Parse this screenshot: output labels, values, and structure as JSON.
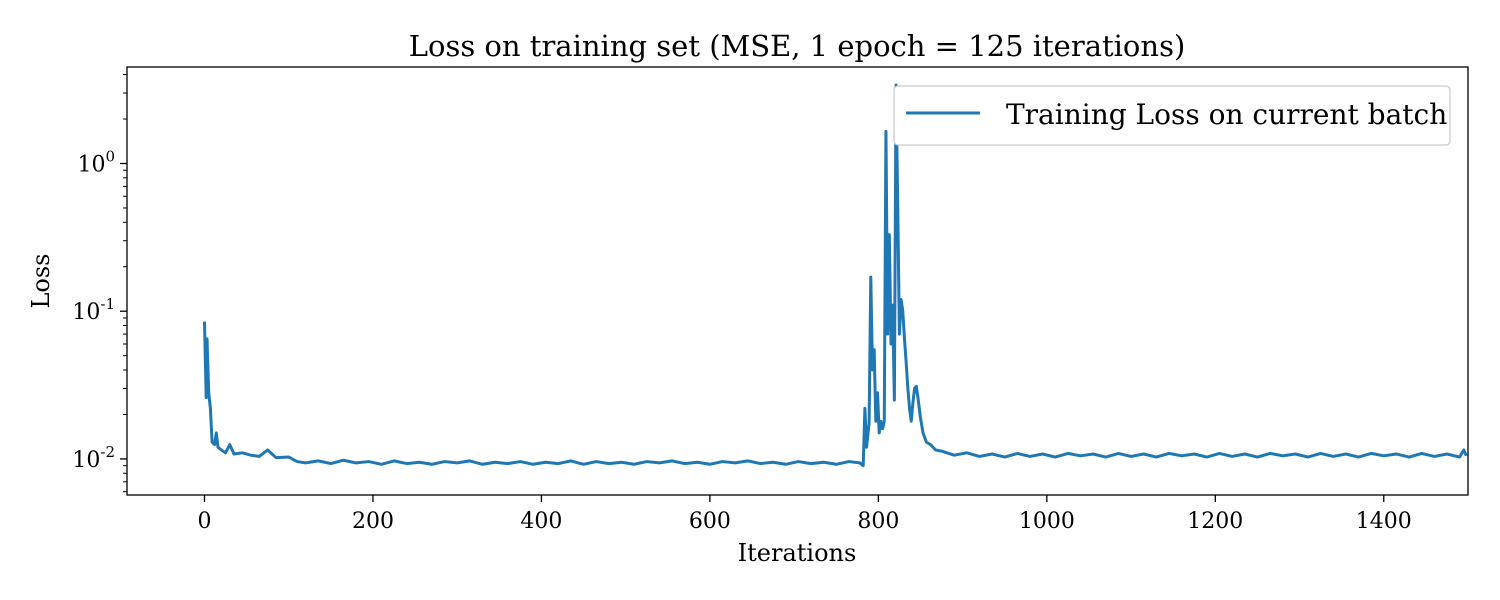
{
  "chart_data": {
    "type": "line",
    "title": "Loss on training set   (MSE, 1 epoch = 125 iterations)",
    "xlabel": "Iterations",
    "ylabel": "Loss",
    "xlim": [
      -92,
      1500
    ],
    "ylim": [
      0.0057,
      4.5
    ],
    "yscale": "log",
    "xticks": [
      0,
      200,
      400,
      600,
      800,
      1000,
      1200,
      1400
    ],
    "xtick_labels": [
      "0",
      "200",
      "400",
      "600",
      "800",
      "1000",
      "1200",
      "1400"
    ],
    "yticks": [
      {
        "value": 1,
        "base": "10",
        "exp": "0"
      },
      {
        "value": 0.1,
        "base": "10",
        "exp": "-1"
      },
      {
        "value": 0.01,
        "base": "10",
        "exp": "-2"
      }
    ],
    "grid": false,
    "legend": {
      "position": "top-right",
      "entries": [
        "Training Loss on current batch"
      ]
    },
    "series": [
      {
        "name": "Training Loss on current batch",
        "color": "#1f77b4",
        "points": [
          [
            0,
            0.085
          ],
          [
            2,
            0.026
          ],
          [
            3,
            0.065
          ],
          [
            5,
            0.028
          ],
          [
            7,
            0.022
          ],
          [
            9,
            0.013
          ],
          [
            12,
            0.0125
          ],
          [
            14,
            0.015
          ],
          [
            16,
            0.012
          ],
          [
            20,
            0.0115
          ],
          [
            25,
            0.011
          ],
          [
            30,
            0.0125
          ],
          [
            35,
            0.0108
          ],
          [
            45,
            0.011
          ],
          [
            55,
            0.0106
          ],
          [
            65,
            0.0104
          ],
          [
            75,
            0.0115
          ],
          [
            85,
            0.0102
          ],
          [
            100,
            0.0103
          ],
          [
            110,
            0.0096
          ],
          [
            120,
            0.0094
          ],
          [
            135,
            0.0097
          ],
          [
            150,
            0.0093
          ],
          [
            165,
            0.0098
          ],
          [
            180,
            0.0094
          ],
          [
            195,
            0.0096
          ],
          [
            210,
            0.0092
          ],
          [
            225,
            0.0097
          ],
          [
            240,
            0.0093
          ],
          [
            255,
            0.0095
          ],
          [
            270,
            0.0092
          ],
          [
            285,
            0.0096
          ],
          [
            300,
            0.0094
          ],
          [
            315,
            0.0097
          ],
          [
            330,
            0.0092
          ],
          [
            345,
            0.0095
          ],
          [
            360,
            0.0093
          ],
          [
            375,
            0.0096
          ],
          [
            390,
            0.0092
          ],
          [
            405,
            0.0095
          ],
          [
            420,
            0.0093
          ],
          [
            435,
            0.0097
          ],
          [
            450,
            0.0092
          ],
          [
            465,
            0.0096
          ],
          [
            480,
            0.0093
          ],
          [
            495,
            0.0095
          ],
          [
            510,
            0.0092
          ],
          [
            525,
            0.0096
          ],
          [
            540,
            0.0094
          ],
          [
            555,
            0.0097
          ],
          [
            570,
            0.0093
          ],
          [
            585,
            0.0095
          ],
          [
            600,
            0.0092
          ],
          [
            615,
            0.0096
          ],
          [
            630,
            0.0094
          ],
          [
            645,
            0.0097
          ],
          [
            660,
            0.0093
          ],
          [
            675,
            0.0095
          ],
          [
            690,
            0.0092
          ],
          [
            705,
            0.0096
          ],
          [
            720,
            0.0093
          ],
          [
            735,
            0.0095
          ],
          [
            750,
            0.0092
          ],
          [
            765,
            0.0096
          ],
          [
            778,
            0.0094
          ],
          [
            782,
            0.009
          ],
          [
            784,
            0.022
          ],
          [
            786,
            0.012
          ],
          [
            789,
            0.0175
          ],
          [
            791,
            0.17
          ],
          [
            793,
            0.04
          ],
          [
            795,
            0.055
          ],
          [
            797,
            0.018
          ],
          [
            799,
            0.028
          ],
          [
            801,
            0.015
          ],
          [
            803,
            0.018
          ],
          [
            805,
            0.016
          ],
          [
            807,
            0.018
          ],
          [
            809,
            1.65
          ],
          [
            811,
            0.07
          ],
          [
            813,
            0.33
          ],
          [
            815,
            0.06
          ],
          [
            817,
            0.11
          ],
          [
            819,
            0.025
          ],
          [
            821,
            3.4
          ],
          [
            823,
            0.5
          ],
          [
            825,
            0.07
          ],
          [
            827,
            0.12
          ],
          [
            829,
            0.1
          ],
          [
            831,
            0.065
          ],
          [
            833,
            0.045
          ],
          [
            835,
            0.03
          ],
          [
            837,
            0.022
          ],
          [
            839,
            0.018
          ],
          [
            841,
            0.024
          ],
          [
            843,
            0.03
          ],
          [
            845,
            0.031
          ],
          [
            847,
            0.026
          ],
          [
            850,
            0.019
          ],
          [
            853,
            0.015
          ],
          [
            857,
            0.013
          ],
          [
            862,
            0.0125
          ],
          [
            868,
            0.0115
          ],
          [
            875,
            0.0113
          ],
          [
            890,
            0.0106
          ],
          [
            905,
            0.011
          ],
          [
            920,
            0.0104
          ],
          [
            935,
            0.0108
          ],
          [
            950,
            0.0103
          ],
          [
            965,
            0.0109
          ],
          [
            980,
            0.0104
          ],
          [
            995,
            0.0108
          ],
          [
            1010,
            0.0103
          ],
          [
            1025,
            0.0109
          ],
          [
            1040,
            0.0105
          ],
          [
            1055,
            0.0108
          ],
          [
            1070,
            0.0103
          ],
          [
            1085,
            0.0109
          ],
          [
            1100,
            0.0104
          ],
          [
            1115,
            0.0108
          ],
          [
            1130,
            0.0103
          ],
          [
            1145,
            0.0109
          ],
          [
            1160,
            0.0105
          ],
          [
            1175,
            0.0108
          ],
          [
            1190,
            0.0103
          ],
          [
            1205,
            0.0109
          ],
          [
            1220,
            0.0104
          ],
          [
            1235,
            0.0108
          ],
          [
            1250,
            0.0103
          ],
          [
            1265,
            0.0109
          ],
          [
            1280,
            0.0105
          ],
          [
            1295,
            0.0108
          ],
          [
            1310,
            0.0103
          ],
          [
            1325,
            0.0109
          ],
          [
            1340,
            0.0104
          ],
          [
            1355,
            0.0108
          ],
          [
            1370,
            0.0103
          ],
          [
            1385,
            0.0109
          ],
          [
            1400,
            0.0105
          ],
          [
            1415,
            0.0108
          ],
          [
            1430,
            0.0103
          ],
          [
            1445,
            0.0109
          ],
          [
            1460,
            0.0104
          ],
          [
            1475,
            0.0108
          ],
          [
            1490,
            0.0103
          ],
          [
            1495,
            0.0115
          ],
          [
            1498,
            0.0105
          ]
        ]
      }
    ]
  }
}
